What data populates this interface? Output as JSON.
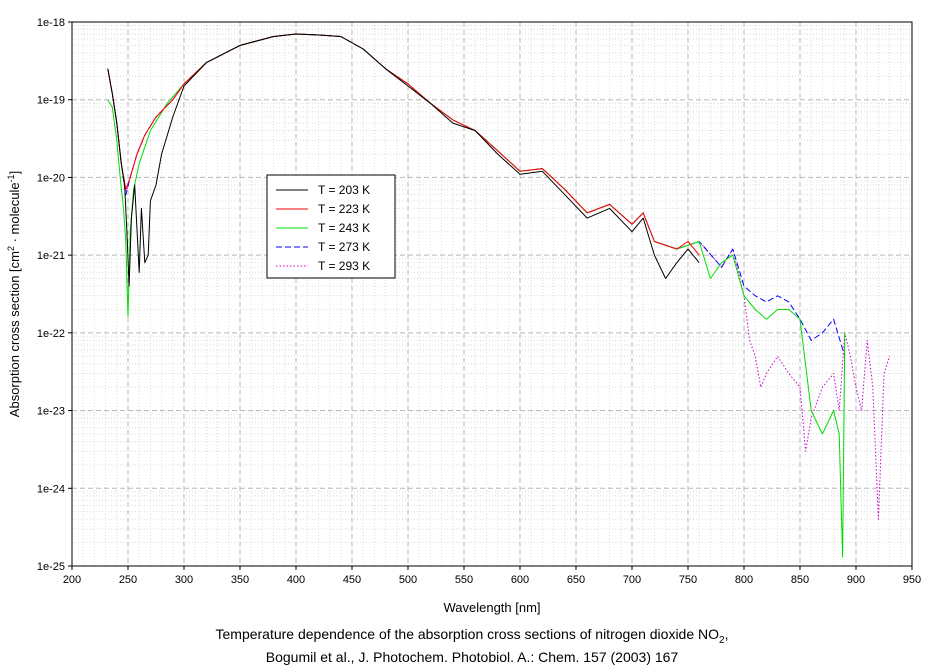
{
  "chart_data": {
    "type": "line",
    "xlabel": "Wavelength [nm]",
    "ylabel_parts": [
      "Absorption cross section [cm",
      "2",
      " · molecule",
      "-1",
      "]"
    ],
    "xlim": [
      200,
      950
    ],
    "ylim": [
      1e-25,
      1e-18
    ],
    "yscale": "log",
    "grid": true,
    "legend_position": "center-left",
    "x_ticks": [
      "200",
      "250",
      "300",
      "350",
      "400",
      "450",
      "500",
      "550",
      "600",
      "650",
      "700",
      "750",
      "800",
      "850",
      "900",
      "950"
    ],
    "y_ticks": [
      "1e-18",
      "1e-19",
      "1e-20",
      "1e-21",
      "1e-22",
      "1e-23",
      "1e-24",
      "1e-25"
    ],
    "series": [
      {
        "name": "T = 203 K",
        "color": "#000000",
        "dash": "solid",
        "points": [
          [
            232,
            2.5e-19
          ],
          [
            236,
            1.2e-19
          ],
          [
            240,
            5e-20
          ],
          [
            244,
            1.5e-20
          ],
          [
            247,
            8e-21
          ],
          [
            249,
            2e-21
          ],
          [
            251,
            4e-22
          ],
          [
            253,
            3e-21
          ],
          [
            256,
            8e-21
          ],
          [
            260,
            6e-22
          ],
          [
            262,
            4e-21
          ],
          [
            265,
            8e-22
          ],
          [
            268,
            1e-21
          ],
          [
            270,
            5e-21
          ],
          [
            275,
            8e-21
          ],
          [
            280,
            2e-20
          ],
          [
            290,
            6e-20
          ],
          [
            300,
            1.5e-19
          ],
          [
            320,
            3e-19
          ],
          [
            350,
            5e-19
          ],
          [
            380,
            6.5e-19
          ],
          [
            400,
            7e-19
          ],
          [
            420,
            6.8e-19
          ],
          [
            440,
            6.5e-19
          ],
          [
            460,
            4.5e-19
          ],
          [
            480,
            2.5e-19
          ],
          [
            500,
            1.5e-19
          ],
          [
            520,
            9e-20
          ],
          [
            540,
            5e-20
          ],
          [
            560,
            4e-20
          ],
          [
            580,
            2e-20
          ],
          [
            600,
            1.1e-20
          ],
          [
            620,
            1.2e-20
          ],
          [
            640,
            6e-21
          ],
          [
            660,
            3e-21
          ],
          [
            680,
            4e-21
          ],
          [
            700,
            2e-21
          ],
          [
            710,
            3e-21
          ],
          [
            720,
            1e-21
          ],
          [
            730,
            5e-22
          ],
          [
            740,
            8e-22
          ],
          [
            750,
            1.2e-21
          ],
          [
            760,
            8e-22
          ]
        ]
      },
      {
        "name": "T = 223 K",
        "color": "#ff0000",
        "dash": "solid",
        "points": [
          [
            232,
            2.5e-19
          ],
          [
            236,
            1.2e-19
          ],
          [
            240,
            5e-20
          ],
          [
            244,
            1.5e-20
          ],
          [
            248,
            7e-21
          ],
          [
            252,
            1e-20
          ],
          [
            258,
            2e-20
          ],
          [
            265,
            3.5e-20
          ],
          [
            275,
            6e-20
          ],
          [
            290,
            1e-19
          ],
          [
            300,
            1.6e-19
          ],
          [
            320,
            3e-19
          ],
          [
            350,
            5e-19
          ],
          [
            380,
            6.5e-19
          ],
          [
            400,
            7e-19
          ],
          [
            420,
            6.8e-19
          ],
          [
            440,
            6.5e-19
          ],
          [
            460,
            4.5e-19
          ],
          [
            480,
            2.5e-19
          ],
          [
            500,
            1.6e-19
          ],
          [
            520,
            9e-20
          ],
          [
            540,
            5.5e-20
          ],
          [
            560,
            4e-20
          ],
          [
            580,
            2.2e-20
          ],
          [
            600,
            1.2e-20
          ],
          [
            620,
            1.3e-20
          ],
          [
            640,
            7e-21
          ],
          [
            660,
            3.5e-21
          ],
          [
            680,
            4.5e-21
          ],
          [
            700,
            2.5e-21
          ],
          [
            710,
            3.5e-21
          ],
          [
            720,
            1.5e-21
          ],
          [
            740,
            1.2e-21
          ],
          [
            750,
            1.5e-21
          ],
          [
            760,
            1e-21
          ]
        ]
      },
      {
        "name": "T = 243 K",
        "color": "#00dd00",
        "dash": "solid",
        "points": [
          [
            232,
            1e-19
          ],
          [
            236,
            8e-20
          ],
          [
            240,
            3e-20
          ],
          [
            243,
            1e-20
          ],
          [
            246,
            4e-21
          ],
          [
            248,
            1.5e-21
          ],
          [
            250,
            1.6e-22
          ],
          [
            252,
            2e-21
          ],
          [
            255,
            7e-21
          ],
          [
            260,
            1.5e-20
          ],
          [
            270,
            4e-20
          ],
          [
            285,
            9e-20
          ],
          [
            300,
            1.6e-19
          ],
          [
            320,
            3e-19
          ],
          [
            350,
            5e-19
          ],
          [
            380,
            6.5e-19
          ],
          [
            400,
            7e-19
          ],
          [
            420,
            6.8e-19
          ],
          [
            440,
            6.5e-19
          ],
          [
            460,
            4.5e-19
          ],
          [
            480,
            2.5e-19
          ],
          [
            500,
            1.6e-19
          ],
          [
            520,
            9e-20
          ],
          [
            540,
            5.5e-20
          ],
          [
            560,
            4e-20
          ],
          [
            580,
            2.2e-20
          ],
          [
            600,
            1.2e-20
          ],
          [
            620,
            1.3e-20
          ],
          [
            640,
            7e-21
          ],
          [
            660,
            3.5e-21
          ],
          [
            680,
            4.5e-21
          ],
          [
            700,
            2.5e-21
          ],
          [
            710,
            3.5e-21
          ],
          [
            720,
            1.5e-21
          ],
          [
            740,
            1.2e-21
          ],
          [
            760,
            1.5e-21
          ],
          [
            770,
            5e-22
          ],
          [
            780,
            8e-22
          ],
          [
            790,
            1e-21
          ],
          [
            800,
            3e-22
          ],
          [
            810,
            2e-22
          ],
          [
            820,
            1.5e-22
          ],
          [
            830,
            2e-22
          ],
          [
            840,
            2e-22
          ],
          [
            850,
            1.5e-22
          ],
          [
            860,
            1e-23
          ],
          [
            870,
            5e-24
          ],
          [
            880,
            1e-23
          ],
          [
            885,
            5e-24
          ],
          [
            888,
            1.3e-25
          ],
          [
            890,
            1e-22
          ]
        ]
      },
      {
        "name": "T = 273 K",
        "color": "#0000ff",
        "dash": "dash",
        "points": [
          [
            232,
            2.5e-19
          ],
          [
            236,
            1.2e-19
          ],
          [
            240,
            5e-20
          ],
          [
            244,
            1.5e-20
          ],
          [
            248,
            6e-21
          ],
          [
            252,
            1e-20
          ],
          [
            258,
            2e-20
          ],
          [
            265,
            3.5e-20
          ],
          [
            275,
            6e-20
          ],
          [
            290,
            1e-19
          ],
          [
            300,
            1.6e-19
          ],
          [
            320,
            3e-19
          ],
          [
            350,
            5e-19
          ],
          [
            380,
            6.5e-19
          ],
          [
            400,
            7e-19
          ],
          [
            420,
            6.8e-19
          ],
          [
            440,
            6.5e-19
          ],
          [
            460,
            4.5e-19
          ],
          [
            480,
            2.5e-19
          ],
          [
            500,
            1.6e-19
          ],
          [
            520,
            9e-20
          ],
          [
            540,
            5.5e-20
          ],
          [
            560,
            4e-20
          ],
          [
            580,
            2.2e-20
          ],
          [
            600,
            1.2e-20
          ],
          [
            620,
            1.3e-20
          ],
          [
            640,
            7e-21
          ],
          [
            660,
            3.5e-21
          ],
          [
            680,
            4.5e-21
          ],
          [
            700,
            2.5e-21
          ],
          [
            710,
            3.5e-21
          ],
          [
            720,
            1.5e-21
          ],
          [
            740,
            1.2e-21
          ],
          [
            760,
            1.5e-21
          ],
          [
            780,
            7e-22
          ],
          [
            790,
            1.2e-21
          ],
          [
            800,
            4e-22
          ],
          [
            810,
            3e-22
          ],
          [
            820,
            2.5e-22
          ],
          [
            830,
            3e-22
          ],
          [
            840,
            2.5e-22
          ],
          [
            850,
            1.5e-22
          ],
          [
            860,
            8e-23
          ],
          [
            870,
            1e-22
          ],
          [
            880,
            1.5e-22
          ],
          [
            890,
            5e-23
          ]
        ]
      },
      {
        "name": "T = 293 K",
        "color": "#cc00cc",
        "dash": "dot",
        "points": [
          [
            232,
            2.5e-19
          ],
          [
            236,
            1.2e-19
          ],
          [
            240,
            5e-20
          ],
          [
            244,
            1.5e-20
          ],
          [
            248,
            6e-21
          ],
          [
            252,
            1e-20
          ],
          [
            258,
            2e-20
          ],
          [
            265,
            3.5e-20
          ],
          [
            275,
            6e-20
          ],
          [
            290,
            1e-19
          ],
          [
            300,
            1.6e-19
          ],
          [
            320,
            3e-19
          ],
          [
            350,
            5e-19
          ],
          [
            380,
            6.5e-19
          ],
          [
            400,
            7e-19
          ],
          [
            420,
            6.8e-19
          ],
          [
            440,
            6.5e-19
          ],
          [
            460,
            4.5e-19
          ],
          [
            480,
            2.5e-19
          ],
          [
            500,
            1.6e-19
          ],
          [
            520,
            9e-20
          ],
          [
            540,
            5.5e-20
          ],
          [
            560,
            4e-20
          ],
          [
            580,
            2.2e-20
          ],
          [
            600,
            1.2e-20
          ],
          [
            620,
            1.3e-20
          ],
          [
            640,
            7e-21
          ],
          [
            660,
            3.5e-21
          ],
          [
            680,
            4.5e-21
          ],
          [
            700,
            2.5e-21
          ],
          [
            710,
            3.5e-21
          ],
          [
            720,
            1.5e-21
          ],
          [
            740,
            1.2e-21
          ],
          [
            760,
            1.5e-21
          ],
          [
            780,
            7e-22
          ],
          [
            790,
            1.2e-21
          ],
          [
            800,
            3e-22
          ],
          [
            805,
            8e-23
          ],
          [
            810,
            5e-23
          ],
          [
            815,
            2e-23
          ],
          [
            820,
            3e-23
          ],
          [
            830,
            5e-23
          ],
          [
            840,
            3e-23
          ],
          [
            850,
            2e-23
          ],
          [
            855,
            3e-24
          ],
          [
            860,
            8e-24
          ],
          [
            870,
            2e-23
          ],
          [
            880,
            3e-23
          ],
          [
            885,
            1e-23
          ],
          [
            890,
            1e-22
          ],
          [
            895,
            5e-23
          ],
          [
            900,
            2e-23
          ],
          [
            905,
            1e-23
          ],
          [
            910,
            8e-23
          ],
          [
            915,
            2e-23
          ],
          [
            920,
            4e-25
          ],
          [
            925,
            3e-23
          ],
          [
            930,
            5e-23
          ]
        ]
      }
    ]
  },
  "caption": {
    "line1_text": "Temperature dependence of the absorption cross sections of nitrogen dioxide NO",
    "line1_sub": "2",
    "line1_end": ",",
    "line2": "Bogumil et al., J. Photochem. Photobiol. A.: Chem. 157 (2003) 167"
  }
}
